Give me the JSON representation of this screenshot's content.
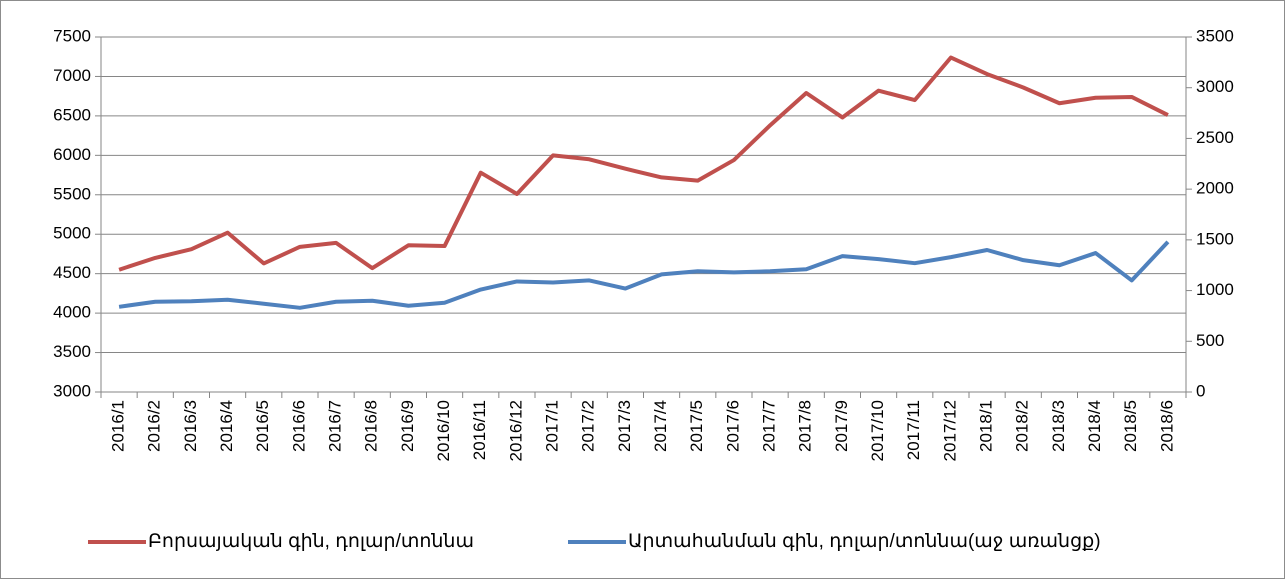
{
  "chart_data": {
    "type": "line",
    "categories": [
      "2016/1",
      "2016/2",
      "2016/3",
      "2016/4",
      "2016/5",
      "2016/6",
      "2016/7",
      "2016/8",
      "2016/9",
      "2016/10",
      "2016/11",
      "2016/12",
      "2017/1",
      "2017/2",
      "2017/3",
      "2017/4",
      "2017/5",
      "2017/6",
      "2017/7",
      "2017/8",
      "2017/9",
      "2017/10",
      "2017/11",
      "2017/12",
      "2018/1",
      "2018/2",
      "2018/3",
      "2018/4",
      "2018/5",
      "2018/6"
    ],
    "series": [
      {
        "name": "Բորսայական գին, դոլար/տոննա",
        "color": "#c0504d",
        "axis": "y",
        "values": [
          4550,
          4700,
          4810,
          5020,
          4630,
          4840,
          4890,
          4570,
          4860,
          4850,
          5780,
          5510,
          6000,
          5950,
          5830,
          5720,
          5680,
          5940,
          6380,
          6790,
          6480,
          6820,
          6700,
          7240,
          7030,
          6860,
          6660,
          6730,
          6740,
          6510
        ]
      },
      {
        "name": "Արտահանման գին, դոլար/տոննա(աջ առանցք)",
        "color": "#4f81bd",
        "axis": "y2",
        "values": [
          840,
          890,
          895,
          910,
          870,
          830,
          890,
          900,
          850,
          880,
          1010,
          1090,
          1080,
          1100,
          1020,
          1160,
          1190,
          1180,
          1190,
          1210,
          1340,
          1310,
          1270,
          1330,
          1400,
          1300,
          1250,
          1370,
          1100,
          1480
        ]
      }
    ],
    "ylim": [
      3000,
      7500
    ],
    "yticks": [
      3000,
      3500,
      4000,
      4500,
      5000,
      5500,
      6000,
      6500,
      7000,
      7500
    ],
    "y2lim": [
      0,
      3500
    ],
    "y2ticks": [
      0,
      500,
      1000,
      1500,
      2000,
      2500,
      3000,
      3500
    ],
    "grid": true,
    "legend": "bottom"
  }
}
